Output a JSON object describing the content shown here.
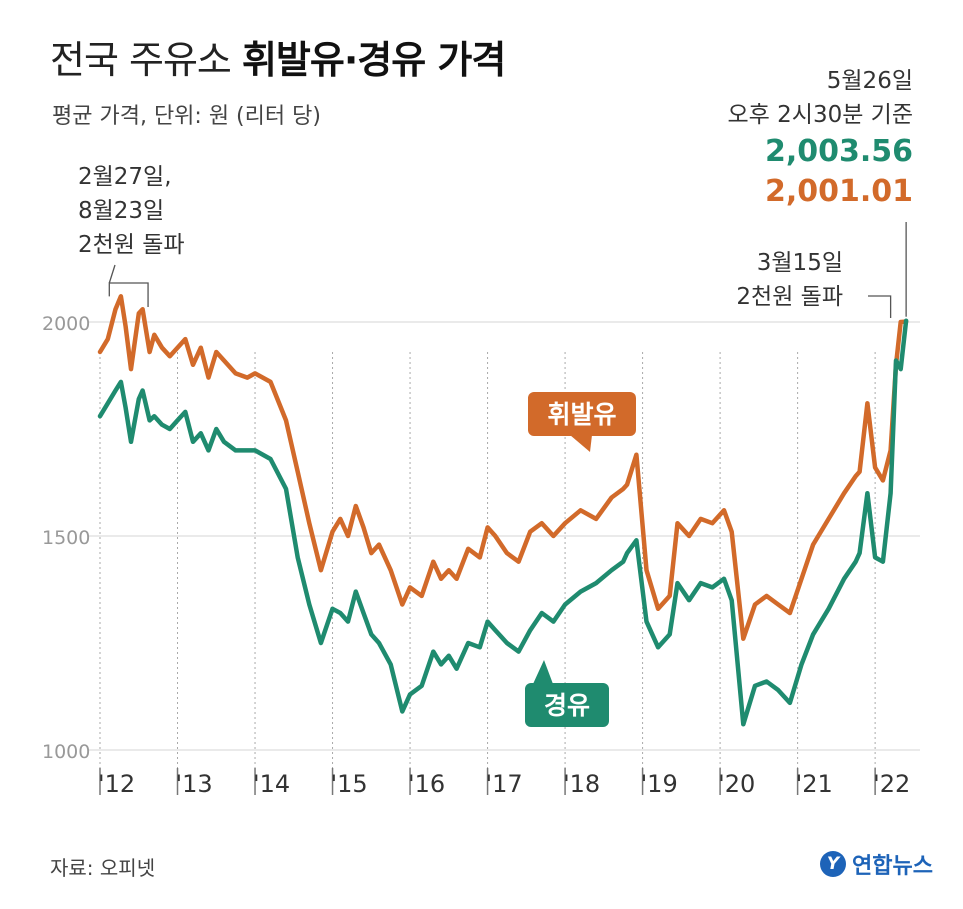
{
  "header": {
    "title_light": "전국 주유소 ",
    "title_bold": "휘발유·경유 가격",
    "subtitle": "평균 가격, 단위: 원 (리터 당)"
  },
  "annotations": {
    "left_lines": [
      "2월27일,",
      "8월23일",
      "2천원 돌파"
    ],
    "date_lines": [
      "5월26일",
      "오후 2시30분 기준"
    ],
    "diesel_value": "2,003.56",
    "gasoline_value": "2,001.01",
    "right_lines": [
      "3월15일",
      "2천원 돌파"
    ]
  },
  "footer": {
    "source": "자료: 오피넷",
    "logo_mark": "Y",
    "logo_text": "연합뉴스"
  },
  "colors": {
    "gasoline": "#d26a2a",
    "diesel": "#1f8b6f",
    "grid": "#dddddd",
    "axis_text": "#999999"
  },
  "chart_data": {
    "type": "line",
    "title": "전국 주유소 휘발유·경유 가격",
    "ylabel": "평균 가격, 단위: 원 (리터 당)",
    "xlabel": "",
    "ylim": [
      1000,
      2100
    ],
    "xlim": [
      2012.0,
      2022.45
    ],
    "yticks": [
      1000,
      1500,
      2000
    ],
    "ytick_labels": [
      "1000",
      "1500",
      "2000"
    ],
    "xticks": [
      2012,
      2013,
      2014,
      2015,
      2016,
      2017,
      2018,
      2019,
      2020,
      2021,
      2022
    ],
    "xtick_labels": [
      "'12",
      "'13",
      "'14",
      "'15",
      "'16",
      "'17",
      "'18",
      "'19",
      "'20",
      "'21",
      "'22"
    ],
    "series": [
      {
        "name": "휘발유",
        "x": [
          2012.0,
          2012.1,
          2012.2,
          2012.27,
          2012.33,
          2012.4,
          2012.5,
          2012.55,
          2012.64,
          2012.7,
          2012.8,
          2012.9,
          2013.0,
          2013.1,
          2013.2,
          2013.3,
          2013.4,
          2013.5,
          2013.6,
          2013.75,
          2013.9,
          2014.0,
          2014.2,
          2014.4,
          2014.55,
          2014.7,
          2014.85,
          2015.0,
          2015.1,
          2015.2,
          2015.3,
          2015.4,
          2015.5,
          2015.6,
          2015.75,
          2015.9,
          2016.0,
          2016.15,
          2016.3,
          2016.4,
          2016.5,
          2016.6,
          2016.75,
          2016.9,
          2017.0,
          2017.1,
          2017.25,
          2017.4,
          2017.55,
          2017.7,
          2017.85,
          2018.0,
          2018.2,
          2018.4,
          2018.6,
          2018.75,
          2018.8,
          2018.92,
          2019.05,
          2019.2,
          2019.35,
          2019.45,
          2019.6,
          2019.75,
          2019.9,
          2020.05,
          2020.15,
          2020.3,
          2020.45,
          2020.6,
          2020.75,
          2020.9,
          2021.05,
          2021.2,
          2021.4,
          2021.6,
          2021.75,
          2021.8,
          2021.9,
          2022.0,
          2022.1,
          2022.2,
          2022.27,
          2022.33,
          2022.4
        ],
        "y": [
          1930,
          1960,
          2030,
          2060,
          1990,
          1890,
          2020,
          2030,
          1930,
          1970,
          1940,
          1920,
          1940,
          1960,
          1900,
          1940,
          1870,
          1930,
          1910,
          1880,
          1870,
          1880,
          1860,
          1770,
          1650,
          1530,
          1420,
          1510,
          1540,
          1500,
          1570,
          1520,
          1460,
          1480,
          1420,
          1340,
          1380,
          1360,
          1440,
          1400,
          1420,
          1400,
          1470,
          1450,
          1520,
          1500,
          1460,
          1440,
          1510,
          1530,
          1500,
          1530,
          1560,
          1540,
          1590,
          1610,
          1620,
          1690,
          1420,
          1330,
          1360,
          1530,
          1500,
          1540,
          1530,
          1560,
          1510,
          1260,
          1340,
          1360,
          1340,
          1320,
          1400,
          1480,
          1540,
          1600,
          1640,
          1650,
          1810,
          1660,
          1630,
          1700,
          1900,
          2000,
          2001
        ]
      },
      {
        "name": "경유",
        "x": [
          2012.0,
          2012.1,
          2012.2,
          2012.27,
          2012.33,
          2012.4,
          2012.5,
          2012.55,
          2012.64,
          2012.7,
          2012.8,
          2012.9,
          2013.0,
          2013.1,
          2013.2,
          2013.3,
          2013.4,
          2013.5,
          2013.6,
          2013.75,
          2013.9,
          2014.0,
          2014.2,
          2014.4,
          2014.55,
          2014.7,
          2014.85,
          2015.0,
          2015.1,
          2015.2,
          2015.3,
          2015.4,
          2015.5,
          2015.6,
          2015.75,
          2015.9,
          2016.0,
          2016.15,
          2016.3,
          2016.4,
          2016.5,
          2016.6,
          2016.75,
          2016.9,
          2017.0,
          2017.1,
          2017.25,
          2017.4,
          2017.55,
          2017.7,
          2017.85,
          2018.0,
          2018.2,
          2018.4,
          2018.6,
          2018.75,
          2018.8,
          2018.92,
          2019.05,
          2019.2,
          2019.35,
          2019.45,
          2019.6,
          2019.75,
          2019.9,
          2020.05,
          2020.15,
          2020.3,
          2020.45,
          2020.6,
          2020.75,
          2020.9,
          2021.05,
          2021.2,
          2021.4,
          2021.6,
          2021.75,
          2021.8,
          2021.9,
          2022.0,
          2022.1,
          2022.2,
          2022.27,
          2022.33,
          2022.4
        ],
        "y": [
          1780,
          1810,
          1840,
          1860,
          1800,
          1720,
          1820,
          1840,
          1770,
          1780,
          1760,
          1750,
          1770,
          1790,
          1720,
          1740,
          1700,
          1750,
          1720,
          1700,
          1700,
          1700,
          1680,
          1610,
          1450,
          1340,
          1250,
          1330,
          1320,
          1300,
          1370,
          1320,
          1270,
          1250,
          1200,
          1090,
          1130,
          1150,
          1230,
          1200,
          1220,
          1190,
          1250,
          1240,
          1300,
          1280,
          1250,
          1230,
          1280,
          1320,
          1300,
          1340,
          1370,
          1390,
          1420,
          1440,
          1460,
          1490,
          1300,
          1240,
          1270,
          1390,
          1350,
          1390,
          1380,
          1400,
          1350,
          1060,
          1150,
          1160,
          1140,
          1110,
          1200,
          1270,
          1330,
          1400,
          1440,
          1460,
          1600,
          1450,
          1440,
          1600,
          1910,
          1890,
          2003
        ]
      }
    ],
    "labels": {
      "gasoline_label": "휘발유",
      "diesel_label": "경유"
    }
  }
}
